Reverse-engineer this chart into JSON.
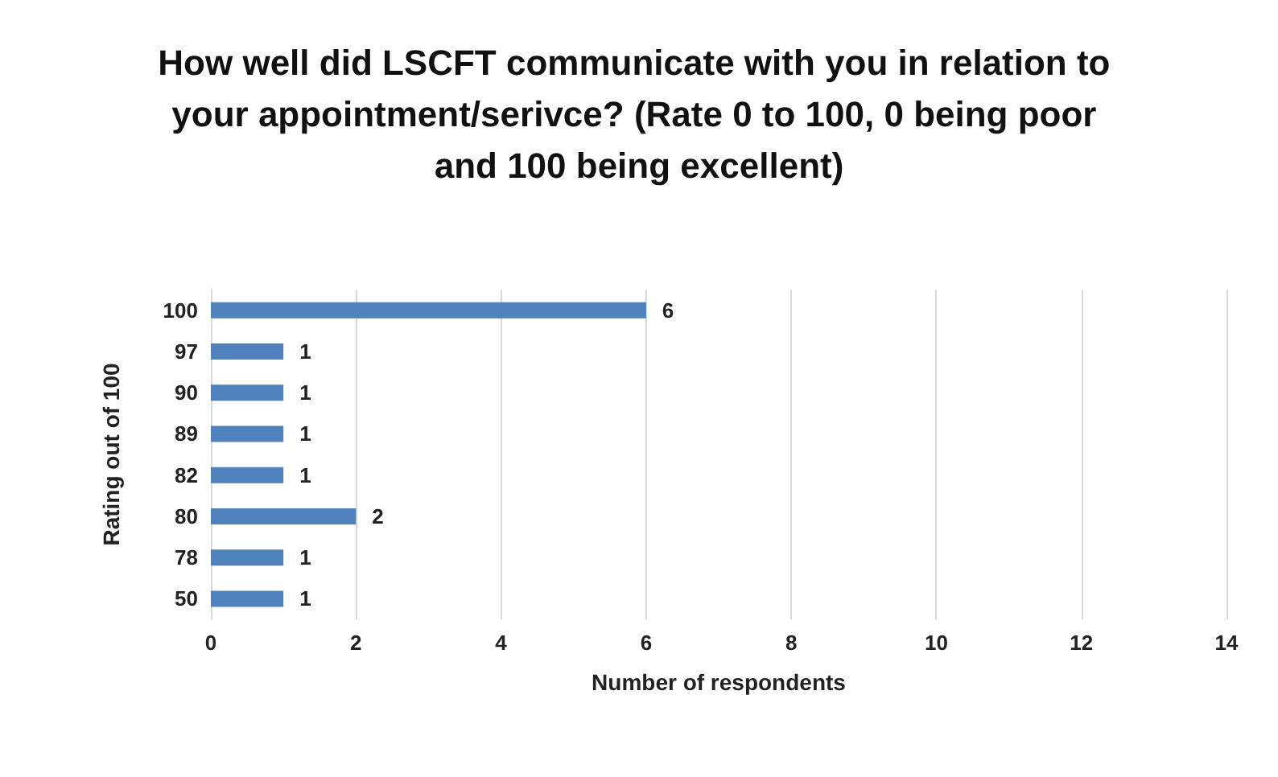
{
  "chart_data": {
    "type": "bar",
    "orientation": "horizontal",
    "title": "How well did LSCFT communicate with you in relation to your appointment/serivce? (Rate 0 to 100, 0 being poor and 100 being excellent)",
    "xlabel": "Number of respondents",
    "ylabel": "Rating out of 100",
    "categories": [
      "100",
      "97",
      "90",
      "89",
      "82",
      "80",
      "78",
      "50"
    ],
    "values": [
      6,
      1,
      1,
      1,
      1,
      2,
      1,
      1
    ],
    "color": "#4f81bd",
    "xlim": [
      0,
      14
    ],
    "xticks": [
      0,
      2,
      4,
      6,
      8,
      10,
      12,
      14
    ],
    "grid": "x",
    "data_labels": true
  }
}
